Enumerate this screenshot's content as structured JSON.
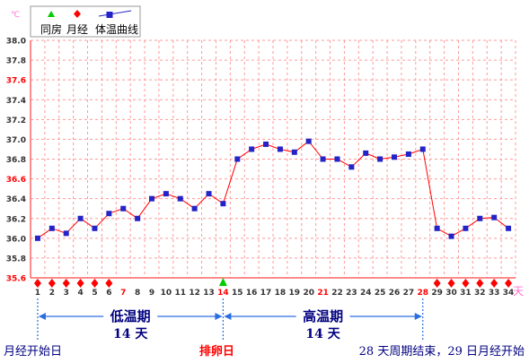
{
  "chart_data": {
    "type": "line",
    "unit_label": "℃",
    "day_unit_label": "天",
    "legend": {
      "items": [
        {
          "label": "同房",
          "marker": "triangle",
          "color": "#00cc00"
        },
        {
          "label": "月经",
          "marker": "diamond",
          "color": "#ff0000"
        },
        {
          "label": "体温曲线",
          "marker": "square-line",
          "color": "#2323c8"
        }
      ]
    },
    "y_axis": {
      "min": 35.6,
      "max": 38.0,
      "step": 0.2,
      "ticks": [
        "35.6",
        "35.8",
        "36.0",
        "36.2",
        "36.4",
        "36.6",
        "36.8",
        "37.0",
        "37.2",
        "37.4",
        "37.6",
        "37.8",
        "38.0"
      ],
      "highlight_ticks": [
        "35.6",
        "36.6",
        "37.6"
      ]
    },
    "x_axis": {
      "days": [
        "1",
        "2",
        "3",
        "4",
        "5",
        "6",
        "7",
        "8",
        "9",
        "10",
        "11",
        "12",
        "13",
        "14",
        "15",
        "16",
        "17",
        "18",
        "19",
        "20",
        "21",
        "22",
        "23",
        "24",
        "25",
        "26",
        "27",
        "28",
        "29",
        "30",
        "31",
        "32",
        "33",
        "34"
      ],
      "highlight_days": [
        "7",
        "14",
        "21",
        "28"
      ]
    },
    "series": [
      {
        "values": [
          36.0,
          36.1,
          36.05,
          36.2,
          36.1,
          36.25,
          36.3,
          36.2,
          36.4,
          36.45,
          36.4,
          36.3,
          36.45,
          36.35,
          36.8,
          36.9,
          36.95,
          36.9,
          36.87,
          36.98,
          36.8,
          36.8,
          36.72,
          36.86,
          36.8,
          36.82,
          36.85,
          36.9,
          36.1,
          36.02,
          36.1,
          36.2,
          36.21,
          36.1
        ],
        "color": "#ff0000",
        "marker_color": "#2323c8"
      }
    ],
    "markers": {
      "menstruation_days": [
        1,
        2,
        3,
        4,
        5,
        6,
        29,
        30,
        31,
        32,
        33,
        34
      ],
      "intercourse_days": [
        14
      ]
    },
    "annotations": {
      "low_phase_title": "低温期",
      "low_phase_days": "14 天",
      "high_phase_title": "高温期",
      "high_phase_days": "14 天",
      "cycle_start": "月经开始日",
      "ovulation_day": "排卵日",
      "cycle_end": "28 天周期结束，29 日月经开始"
    },
    "grid": true,
    "colors": {
      "grid": "#ff9999",
      "axis": "#ff6666",
      "highlight_text": "#ff0000",
      "arrow": "#2a6ee0",
      "phase_text": "#000080",
      "label_text": "#000000"
    }
  }
}
